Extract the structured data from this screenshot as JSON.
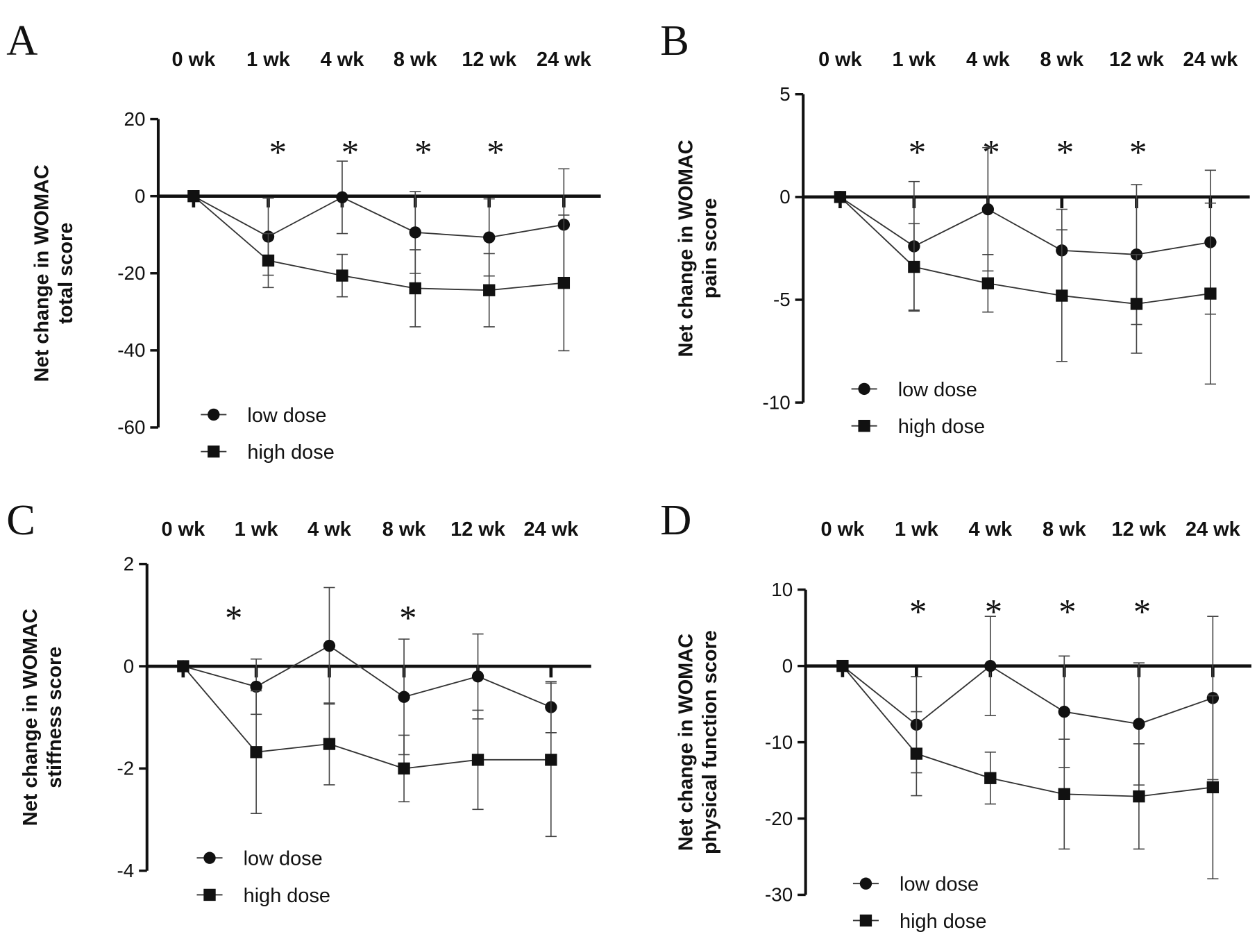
{
  "chart_data": [
    {
      "panel": "A",
      "type": "line",
      "categories": [
        "0 wk",
        "1 wk",
        "4 wk",
        "8 wk",
        "12 wk",
        "24 wk"
      ],
      "ylabel": [
        "Net change in WOMAC",
        "total score"
      ],
      "ylim": [
        -60,
        20
      ],
      "yticks": [
        20,
        0,
        -20,
        -40,
        -60
      ],
      "yticklabels": [
        "20",
        "0",
        "-20",
        "-40",
        "-60"
      ],
      "significant": [
        "1 wk",
        "4 wk",
        "8 wk",
        "12 wk"
      ],
      "asterisk": "*",
      "legend_placement": "bottom-left",
      "series": [
        {
          "name": "low dose",
          "marker": "circle",
          "values": [
            0,
            -10.5,
            -0.3,
            -9.4,
            -10.7,
            -7.4
          ],
          "error": [
            0,
            10,
            9.4,
            10.6,
            10,
            14.5
          ]
        },
        {
          "name": "high dose",
          "marker": "square",
          "values": [
            0,
            -16.7,
            -20.6,
            -23.9,
            -24.4,
            -22.5
          ],
          "error": [
            0,
            7,
            5.5,
            10,
            9.5,
            17.6
          ]
        }
      ]
    },
    {
      "panel": "B",
      "type": "line",
      "categories": [
        "0 wk",
        "1 wk",
        "4 wk",
        "8 wk",
        "12 wk",
        "24 wk"
      ],
      "ylabel": [
        "Net change in WOMAC",
        "pain score"
      ],
      "ylim": [
        -10,
        5
      ],
      "yticks": [
        5,
        0,
        -5,
        -10
      ],
      "yticklabels": [
        "5",
        "0",
        "-5",
        "-10"
      ],
      "significant": [
        "1 wk",
        "4 wk",
        "8 wk",
        "12 wk"
      ],
      "asterisk": "*",
      "legend_placement": "bottom-left",
      "series": [
        {
          "name": "low dose",
          "marker": "circle",
          "values": [
            0,
            -2.4,
            -0.6,
            -2.6,
            -2.8,
            -2.2
          ],
          "error": [
            0,
            3.15,
            3.0,
            2.0,
            3.4,
            3.5
          ]
        },
        {
          "name": "high dose",
          "marker": "square",
          "values": [
            0,
            -3.4,
            -4.2,
            -4.8,
            -5.2,
            -4.7
          ],
          "error": [
            0,
            2.1,
            1.4,
            3.2,
            2.4,
            4.4
          ]
        }
      ]
    },
    {
      "panel": "C",
      "type": "line",
      "categories": [
        "0 wk",
        "1 wk",
        "4 wk",
        "8 wk",
        "12 wk",
        "24 wk"
      ],
      "ylabel": [
        "Net change in WOMAC",
        "stiffness score"
      ],
      "ylim": [
        -4,
        2
      ],
      "yticks": [
        2,
        0,
        -2,
        -4
      ],
      "yticklabels": [
        "2",
        "0",
        "-2",
        "-4"
      ],
      "significant": [
        "1 wk",
        "8 wk"
      ],
      "asterisk": "*",
      "legend_placement": "bottom-left",
      "series": [
        {
          "name": "low dose",
          "marker": "circle",
          "values": [
            0,
            -0.4,
            0.4,
            -0.6,
            -0.2,
            -0.8
          ],
          "error": [
            0,
            0.54,
            1.14,
            1.13,
            0.83,
            0.5
          ]
        },
        {
          "name": "high dose",
          "marker": "square",
          "values": [
            0,
            -1.68,
            -1.52,
            -2.0,
            -1.83,
            -1.83
          ],
          "error": [
            0,
            1.2,
            0.8,
            0.65,
            0.97,
            1.5
          ]
        }
      ]
    },
    {
      "panel": "D",
      "type": "line",
      "categories": [
        "0 wk",
        "1 wk",
        "4 wk",
        "8 wk",
        "12 wk",
        "24 wk"
      ],
      "ylabel": [
        "Net change in WOMAC",
        "physical function score"
      ],
      "ylim": [
        -30,
        10
      ],
      "yticks": [
        10,
        0,
        -10,
        -20,
        -30
      ],
      "yticklabels": [
        "10",
        "0",
        "-10",
        "-20",
        "-30"
      ],
      "significant": [
        "1 wk",
        "4 wk",
        "8 wk",
        "12 wk"
      ],
      "asterisk": "*",
      "legend_placement": "bottom-left",
      "series": [
        {
          "name": "low dose",
          "marker": "circle",
          "values": [
            0,
            -7.7,
            0,
            -6.0,
            -7.6,
            -4.2
          ],
          "error": [
            0,
            6.3,
            6.5,
            7.3,
            8,
            10.7
          ]
        },
        {
          "name": "high dose",
          "marker": "square",
          "values": [
            0,
            -11.5,
            -14.7,
            -16.8,
            -17.1,
            -15.9
          ],
          "error": [
            0,
            5.5,
            3.4,
            7.2,
            6.9,
            12
          ]
        }
      ]
    }
  ]
}
